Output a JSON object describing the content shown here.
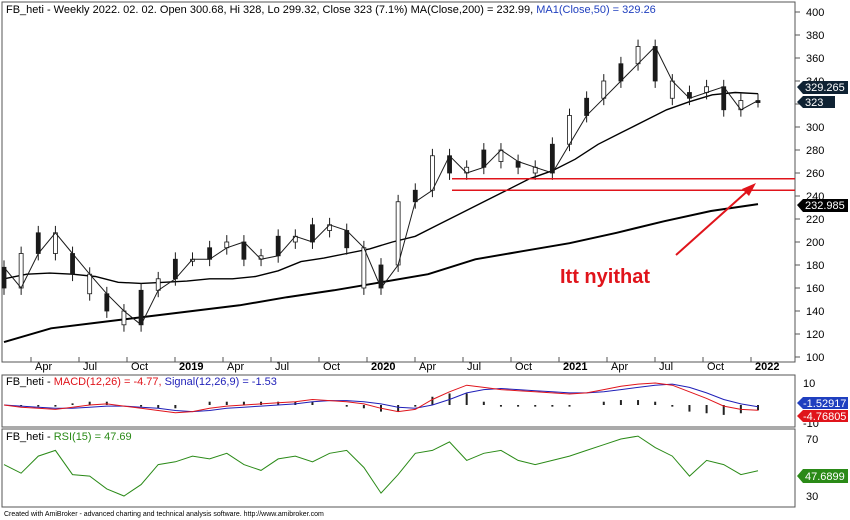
{
  "main_panel": {
    "title_prefix": "FB_heti - Weekly 2022. 02. 02. Open 300.68, Hi 328, Lo 299.32, Close 323 (7.1%) MA(Close,200) = 232.99, ",
    "title_ma50": "MA1(Close,50) = 329.26",
    "price_axis_ticks": [
      "100",
      "120",
      "140",
      "160",
      "180",
      "200",
      "220",
      "240",
      "260",
      "280",
      "300",
      "320",
      "340",
      "360",
      "380",
      "400"
    ],
    "time_axis_labels": [
      "Apr",
      "Jul",
      "Oct",
      "2019",
      "Apr",
      "Jul",
      "Oct",
      "2020",
      "Apr",
      "Jul",
      "Oct",
      "2021",
      "Apr",
      "Jul",
      "Oct",
      "2022"
    ],
    "value_badges": {
      "ma50": "329.265",
      "close": "323",
      "ma200": "232.985"
    },
    "annotation": "Itt nyithat",
    "colors": {
      "price": "#1a1a1a",
      "ma": "#000000",
      "support": "#e0141b",
      "annotation": "#e0141b",
      "badge_bg": "#000000",
      "badge_fg": "#ffffff"
    }
  },
  "macd_panel": {
    "title_prefix": "FB_heti - ",
    "title_macd": "MACD(12,26) = -4.77, ",
    "title_signal": "Signal(12,26,9) = -1.53",
    "badge_signal": "-1.52917",
    "badge_macd": "-4.76805",
    "colors": {
      "macd": "#e0141b",
      "signal": "#1f1fb8",
      "hist": "#222222",
      "badge_signal_bg": "#1f3fbf",
      "badge_macd_bg": "#e0141b"
    }
  },
  "rsi_panel": {
    "title_prefix": "FB_heti - ",
    "title_rsi": "RSI(15) = 47.69",
    "ticks": [
      "70",
      "30"
    ],
    "badge": "47.6899",
    "colors": {
      "rsi": "#2a8a17",
      "badge_bg": "#2a8a17"
    }
  },
  "footer": "Created with AmiBroker - advanced charting and technical analysis software. http://www.amibroker.com",
  "chart_data": [
    {
      "type": "line",
      "title": "FB_heti - Weekly 2022. 02. 02.",
      "ylim": [
        100,
        400
      ],
      "support_levels": [
        255,
        245
      ],
      "series": [
        {
          "name": "Close",
          "x": [
            "2018-03",
            "2018-04",
            "2018-05",
            "2018-07",
            "2018-07",
            "2018-08",
            "2018-10",
            "2018-11",
            "2018-12",
            "2019-01",
            "2019-02",
            "2019-04",
            "2019-05",
            "2019-06",
            "2019-07",
            "2019-09",
            "2019-10",
            "2019-11",
            "2019-12",
            "2020-01",
            "2020-02",
            "2020-03",
            "2020-04",
            "2020-05",
            "2020-06",
            "2020-07",
            "2020-08",
            "2020-09",
            "2020-10",
            "2020-11",
            "2020-12",
            "2021-01",
            "2021-02",
            "2021-03",
            "2021-04",
            "2021-05",
            "2021-06",
            "2021-07",
            "2021-08",
            "2021-09",
            "2021-10",
            "2021-11",
            "2021-12",
            "2022-01",
            "2022-02"
          ],
          "values": [
            178,
            160,
            190,
            208,
            190,
            172,
            155,
            140,
            128,
            158,
            168,
            185,
            185,
            195,
            200,
            185,
            188,
            205,
            200,
            215,
            210,
            195,
            160,
            180,
            235,
            245,
            275,
            260,
            265,
            280,
            270,
            265,
            260,
            285,
            310,
            325,
            340,
            355,
            370,
            340,
            325,
            330,
            335,
            315,
            323
          ]
        },
        {
          "name": "MA1(Close,50)",
          "values": [
            168,
            172,
            173,
            172,
            170,
            165,
            164,
            165,
            166,
            168,
            168,
            170,
            175,
            183,
            186,
            190,
            194,
            200,
            205,
            215,
            225,
            235,
            245,
            255,
            262,
            272,
            285,
            295,
            305,
            315,
            322,
            328,
            330,
            329
          ]
        },
        {
          "name": "MA(Close,200)",
          "values": [
            113,
            125,
            130,
            135,
            140,
            145,
            152,
            158,
            165,
            172,
            185,
            192,
            199,
            208,
            218,
            227,
            233
          ]
        }
      ]
    },
    {
      "type": "line",
      "title": "FB_heti - MACD(12,26) = -4.77, Signal(12,26,9) = -1.53",
      "series": [
        {
          "name": "MACD(12,26)",
          "values": [
            0,
            -2,
            -3,
            -4,
            -2,
            0,
            1,
            -1,
            -3,
            -5,
            -7,
            -6,
            -3,
            -1,
            0,
            1,
            2,
            3,
            5,
            4,
            3,
            1,
            -3,
            -6,
            -4,
            5,
            12,
            18,
            16,
            14,
            13,
            12,
            11,
            10,
            11,
            14,
            17,
            19,
            20,
            18,
            12,
            6,
            -1,
            -4,
            -4.77
          ]
        },
        {
          "name": "Signal(12,26,9)",
          "values": [
            0,
            -1,
            -2,
            -3,
            -3,
            -2,
            -1,
            -1,
            -2,
            -3,
            -5,
            -6,
            -5,
            -3,
            -2,
            -1,
            0,
            1,
            3,
            4,
            4,
            3,
            1,
            -2,
            -3,
            0,
            5,
            11,
            14,
            15,
            14,
            13,
            12,
            11,
            11,
            12,
            14,
            16,
            18,
            19,
            16,
            11,
            5,
            1,
            -1.53
          ]
        }
      ]
    },
    {
      "type": "line",
      "title": "FB_heti - RSI(15) = 47.69",
      "ylim": [
        30,
        70
      ],
      "series": [
        {
          "name": "RSI(15)",
          "values": [
            52,
            46,
            58,
            62,
            45,
            44,
            35,
            30,
            38,
            52,
            54,
            58,
            56,
            60,
            52,
            48,
            56,
            58,
            54,
            60,
            62,
            50,
            32,
            45,
            60,
            62,
            68,
            55,
            60,
            62,
            55,
            52,
            55,
            58,
            62,
            66,
            70,
            72,
            64,
            58,
            44,
            55,
            52,
            45,
            47.69
          ]
        }
      ]
    }
  ]
}
